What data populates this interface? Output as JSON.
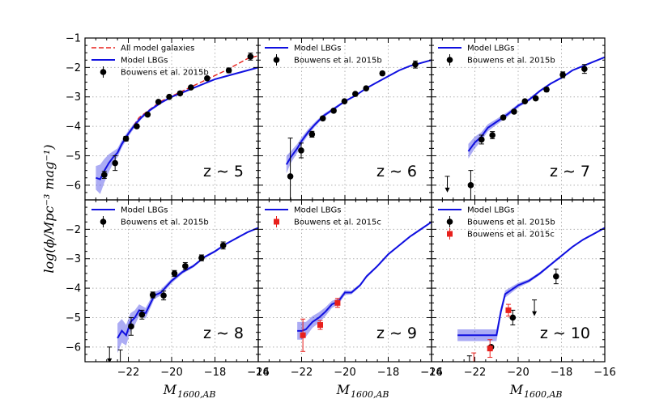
{
  "figure": {
    "x_label_main": "M",
    "x_label_sub": "1600,AB",
    "y_label": "log(ϕ/Mpc⁻³ mag⁻¹)"
  },
  "chart_data": [
    {
      "type": "line",
      "panel": "z5",
      "redshift_label": "z ∼ 5",
      "xlim": [
        -24,
        -16
      ],
      "ylim": [
        -6.5,
        -1
      ],
      "legend": [
        {
          "label": "All model galaxies",
          "style": "dashed",
          "color": "#e8201c"
        },
        {
          "label": "Model LBGs",
          "style": "solid",
          "color": "#1010e0"
        },
        {
          "label": "Bouwens et al. 2015b",
          "style": "marker",
          "color": "#000000"
        }
      ],
      "series": [
        {
          "name": "All model galaxies",
          "color": "#e8201c",
          "style": "dashed",
          "x": [
            -22.3,
            -21.5,
            -20.5,
            -19.5,
            -18.5,
            -17.5,
            -17.0,
            -16.5,
            -16.0
          ],
          "y": [
            -4.6,
            -3.7,
            -3.15,
            -2.8,
            -2.45,
            -2.1,
            -1.9,
            -1.7,
            -1.6
          ]
        },
        {
          "name": "Model LBGs",
          "color": "#1010e0",
          "style": "solid",
          "x": [
            -23.5,
            -23.3,
            -23.1,
            -22.9,
            -22.7,
            -22.5,
            -22.3,
            -22.0,
            -21.7,
            -21.4,
            -21.0,
            -20.5,
            -20.0,
            -19.5,
            -19.0,
            -18.5,
            -18.0,
            -17.5,
            -17.0,
            -16.5,
            -16.0
          ],
          "y": [
            -5.75,
            -5.8,
            -5.5,
            -5.25,
            -5.05,
            -4.9,
            -4.6,
            -4.25,
            -3.95,
            -3.7,
            -3.45,
            -3.2,
            -3.0,
            -2.85,
            -2.7,
            -2.55,
            -2.4,
            -2.3,
            -2.2,
            -2.1,
            -2.0
          ],
          "band": [
            0.4,
            0.5,
            0.4,
            0.3,
            0.2,
            0.15,
            0.12,
            0.1,
            0.08,
            0.06,
            0.05,
            0.04,
            0.03,
            0.03,
            0.03,
            0.02,
            0.02,
            0.02,
            0.02,
            0.02,
            0.02
          ]
        },
        {
          "name": "Bouwens et al. 2015b",
          "color": "#000000",
          "style": "marker",
          "marker": "circle",
          "x": [
            -23.11,
            -22.61,
            -22.11,
            -21.61,
            -21.11,
            -20.61,
            -20.11,
            -19.61,
            -19.11,
            -18.36,
            -17.36,
            -16.36
          ],
          "y": [
            -5.65,
            -5.25,
            -4.42,
            -4.0,
            -3.6,
            -3.17,
            -3.0,
            -2.88,
            -2.68,
            -2.37,
            -2.1,
            -1.63
          ],
          "err": [
            0.12,
            0.25,
            0.08,
            0.06,
            0.05,
            0.04,
            0.04,
            0.04,
            0.04,
            0.05,
            0.08,
            0.12
          ],
          "upper_limit": [
            false,
            false,
            false,
            false,
            false,
            false,
            false,
            false,
            false,
            false,
            false,
            false
          ]
        }
      ]
    },
    {
      "type": "line",
      "panel": "z6",
      "redshift_label": "z ∼ 6",
      "xlim": [
        -24,
        -16
      ],
      "ylim": [
        -6.5,
        -1
      ],
      "legend": [
        {
          "label": "Model LBGs",
          "style": "solid",
          "color": "#1010e0"
        },
        {
          "label": "Bouwens et al. 2015b",
          "style": "marker",
          "color": "#000000"
        }
      ],
      "series": [
        {
          "name": "Model LBGs",
          "color": "#1010e0",
          "style": "solid",
          "x": [
            -22.7,
            -22.5,
            -22.2,
            -22.0,
            -21.7,
            -21.4,
            -21.0,
            -20.5,
            -20.0,
            -19.5,
            -19.0,
            -18.5,
            -18.0,
            -17.5,
            -17.0,
            -16.5,
            -16.0
          ],
          "y": [
            -5.3,
            -5.05,
            -4.75,
            -4.5,
            -4.2,
            -3.95,
            -3.65,
            -3.4,
            -3.15,
            -2.95,
            -2.7,
            -2.5,
            -2.3,
            -2.1,
            -1.95,
            -1.85,
            -1.75
          ],
          "band": [
            0.3,
            0.2,
            0.15,
            0.12,
            0.1,
            0.08,
            0.06,
            0.05,
            0.04,
            0.03,
            0.03,
            0.02,
            0.02,
            0.02,
            0.02,
            0.02,
            0.02
          ]
        },
        {
          "name": "Bouwens et al. 2015b",
          "color": "#000000",
          "style": "marker",
          "marker": "circle",
          "x": [
            -22.52,
            -22.02,
            -21.52,
            -21.02,
            -20.52,
            -20.02,
            -19.52,
            -19.02,
            -18.27,
            -16.75
          ],
          "y": [
            -5.7,
            -4.82,
            -4.27,
            -3.73,
            -3.47,
            -3.15,
            -2.9,
            -2.71,
            -2.2,
            -1.9
          ],
          "err": [
            1.3,
            0.25,
            0.1,
            0.06,
            0.05,
            0.04,
            0.04,
            0.05,
            0.06,
            0.12
          ],
          "upper_limit": [
            false,
            false,
            false,
            false,
            false,
            false,
            false,
            false,
            false,
            false
          ]
        }
      ]
    },
    {
      "type": "line",
      "panel": "z7",
      "redshift_label": "z ∼ 7",
      "xlim": [
        -24,
        -16
      ],
      "ylim": [
        -6.5,
        -1
      ],
      "legend": [
        {
          "label": "Model LBGs",
          "style": "solid",
          "color": "#1010e0"
        },
        {
          "label": "Bouwens et al. 2015b",
          "style": "marker",
          "color": "#000000"
        }
      ],
      "series": [
        {
          "name": "Model LBGs",
          "color": "#1010e0",
          "style": "solid",
          "x": [
            -22.3,
            -22.0,
            -21.7,
            -21.4,
            -21.0,
            -20.5,
            -20.0,
            -19.5,
            -19.0,
            -18.5,
            -18.0,
            -17.5,
            -17.0,
            -16.5,
            -16.0
          ],
          "y": [
            -4.85,
            -4.55,
            -4.35,
            -4.05,
            -3.85,
            -3.6,
            -3.3,
            -3.1,
            -2.8,
            -2.55,
            -2.35,
            -2.1,
            -1.95,
            -1.8,
            -1.65
          ],
          "band": [
            0.25,
            0.2,
            0.15,
            0.12,
            0.1,
            0.08,
            0.06,
            0.05,
            0.04,
            0.03,
            0.03,
            0.02,
            0.02,
            0.02,
            0.02
          ]
        },
        {
          "name": "Bouwens et al. 2015b",
          "color": "#000000",
          "style": "marker",
          "marker": "circle",
          "x": [
            -23.27,
            -22.19,
            -21.69,
            -21.19,
            -20.69,
            -20.19,
            -19.69,
            -19.19,
            -18.69,
            -17.94,
            -16.94
          ],
          "y": [
            -5.7,
            -6.0,
            -4.45,
            -4.3,
            -3.7,
            -3.5,
            -3.15,
            -3.05,
            -2.75,
            -2.25,
            -2.05
          ],
          "err": [
            0.0,
            0.5,
            0.15,
            0.12,
            0.06,
            0.05,
            0.05,
            0.05,
            0.07,
            0.1,
            0.15
          ],
          "upper_limit": [
            true,
            false,
            false,
            false,
            false,
            false,
            false,
            false,
            false,
            false,
            false
          ]
        }
      ]
    },
    {
      "type": "line",
      "panel": "z8",
      "redshift_label": "z ∼ 8",
      "xlim": [
        -24,
        -16
      ],
      "ylim": [
        -6.5,
        -1
      ],
      "legend": [
        {
          "label": "Model LBGs",
          "style": "solid",
          "color": "#1010e0"
        },
        {
          "label": "Bouwens et al. 2015b",
          "style": "marker",
          "color": "#000000"
        }
      ],
      "series": [
        {
          "name": "Model LBGs",
          "color": "#1010e0",
          "style": "solid",
          "x": [
            -22.5,
            -22.3,
            -22.1,
            -21.9,
            -21.7,
            -21.5,
            -21.2,
            -21.0,
            -20.8,
            -20.5,
            -20.0,
            -19.5,
            -19.0,
            -18.5,
            -18.0,
            -17.5,
            -17.0,
            -16.5,
            -16.0
          ],
          "y": [
            -5.7,
            -5.45,
            -5.6,
            -5.15,
            -5.0,
            -4.75,
            -4.85,
            -4.55,
            -4.25,
            -4.15,
            -3.75,
            -3.45,
            -3.25,
            -2.95,
            -2.75,
            -2.5,
            -2.3,
            -2.1,
            -1.95
          ],
          "band": [
            0.5,
            0.4,
            0.35,
            0.3,
            0.25,
            0.2,
            0.18,
            0.15,
            0.12,
            0.1,
            0.08,
            0.06,
            0.05,
            0.04,
            0.04,
            0.03,
            0.03,
            0.03,
            0.03
          ]
        },
        {
          "name": "Bouwens et al. 2015b",
          "color": "#000000",
          "style": "marker",
          "marker": "circle",
          "x": [
            -22.87,
            -22.37,
            -21.87,
            -21.37,
            -20.87,
            -20.37,
            -19.87,
            -19.37,
            -18.62,
            -17.62
          ],
          "y": [
            -6.0,
            -6.1,
            -5.3,
            -4.9,
            -4.23,
            -4.25,
            -3.5,
            -3.25,
            -2.97,
            -2.55
          ],
          "err": [
            0.0,
            0.0,
            0.3,
            0.15,
            0.1,
            0.15,
            0.1,
            0.12,
            0.1,
            0.12
          ],
          "upper_limit": [
            true,
            true,
            false,
            false,
            false,
            false,
            false,
            false,
            false,
            false
          ]
        }
      ]
    },
    {
      "type": "line",
      "panel": "z9",
      "redshift_label": "z ∼ 9",
      "xlim": [
        -24,
        -16
      ],
      "ylim": [
        -6.5,
        -1
      ],
      "legend": [
        {
          "label": "Model LBGs",
          "style": "solid",
          "color": "#1010e0"
        },
        {
          "label": "Bouwens et al. 2015c",
          "style": "marker",
          "color": "#e8201c"
        }
      ],
      "series": [
        {
          "name": "Model LBGs",
          "color": "#1010e0",
          "style": "solid",
          "x": [
            -22.2,
            -22.0,
            -21.8,
            -21.5,
            -21.2,
            -20.9,
            -20.6,
            -20.3,
            -20.0,
            -19.7,
            -19.3,
            -19.0,
            -18.5,
            -18.0,
            -17.5,
            -17.0,
            -16.5,
            -16.0
          ],
          "y": [
            -5.45,
            -5.45,
            -5.4,
            -5.15,
            -5.0,
            -4.8,
            -4.55,
            -4.45,
            -4.15,
            -4.15,
            -3.9,
            -3.6,
            -3.25,
            -2.85,
            -2.55,
            -2.25,
            -2.0,
            -1.75
          ],
          "band": [
            0.3,
            0.3,
            0.25,
            0.2,
            0.18,
            0.15,
            0.12,
            0.1,
            0.08,
            0.06,
            0.05,
            0.05,
            0.04,
            0.04,
            0.03,
            0.03,
            0.03,
            0.03
          ]
        },
        {
          "name": "Bouwens et al. 2015c",
          "color": "#e8201c",
          "style": "marker",
          "marker": "square",
          "x": [
            -21.94,
            -21.14,
            -20.34
          ],
          "y": [
            -5.6,
            -5.25,
            -4.5
          ],
          "err": [
            0.55,
            0.15,
            0.15
          ],
          "upper_limit": [
            false,
            false,
            false
          ]
        }
      ]
    },
    {
      "type": "line",
      "panel": "z10",
      "redshift_label": "z ∼ 10",
      "xlim": [
        -24,
        -16
      ],
      "ylim": [
        -6.5,
        -1
      ],
      "legend": [
        {
          "label": "Model LBGs",
          "style": "solid",
          "color": "#1010e0"
        },
        {
          "label": "Bouwens et al. 2015b",
          "style": "marker",
          "color": "#000000"
        },
        {
          "label": "Bouwens et al. 2015c",
          "style": "marker",
          "color": "#e8201c"
        }
      ],
      "series": [
        {
          "name": "Model LBGs",
          "color": "#1010e0",
          "style": "solid",
          "x": [
            -22.8,
            -22.4,
            -22.0,
            -21.5,
            -21.0,
            -20.8,
            -20.6,
            -20.3,
            -20.0,
            -19.5,
            -19.0,
            -18.5,
            -18.0,
            -17.5,
            -17.0,
            -16.5,
            -16.0
          ],
          "y": [
            -5.6,
            -5.6,
            -5.6,
            -5.6,
            -5.6,
            -4.8,
            -4.2,
            -4.05,
            -3.9,
            -3.75,
            -3.5,
            -3.2,
            -2.9,
            -2.6,
            -2.35,
            -2.15,
            -1.95
          ],
          "band": [
            0.2,
            0.2,
            0.2,
            0.2,
            0.2,
            0.15,
            0.12,
            0.1,
            0.08,
            0.06,
            0.05,
            0.04,
            0.04,
            0.03,
            0.03,
            0.03,
            0.03
          ]
        },
        {
          "name": "Bouwens et al. 2015b",
          "color": "#000000",
          "style": "marker",
          "marker": "circle",
          "x": [
            -22.25,
            -21.25,
            -20.25,
            -19.25,
            -18.25
          ],
          "y": [
            -6.3,
            -6.0,
            -5.0,
            -4.4,
            -3.6
          ],
          "err": [
            0.0,
            0.0,
            0.25,
            0.0,
            0.25
          ],
          "upper_limit": [
            true,
            false,
            false,
            true,
            false
          ]
        },
        {
          "name": "Bouwens et al. 2015c",
          "color": "#e8201c",
          "style": "marker",
          "marker": "square",
          "x": [
            -22.05,
            -21.3,
            -20.45
          ],
          "y": [
            -6.2,
            -6.05,
            -4.75
          ],
          "err": [
            0.2,
            0.3,
            0.2
          ],
          "upper_limit": [
            true,
            false,
            false
          ]
        }
      ]
    }
  ]
}
